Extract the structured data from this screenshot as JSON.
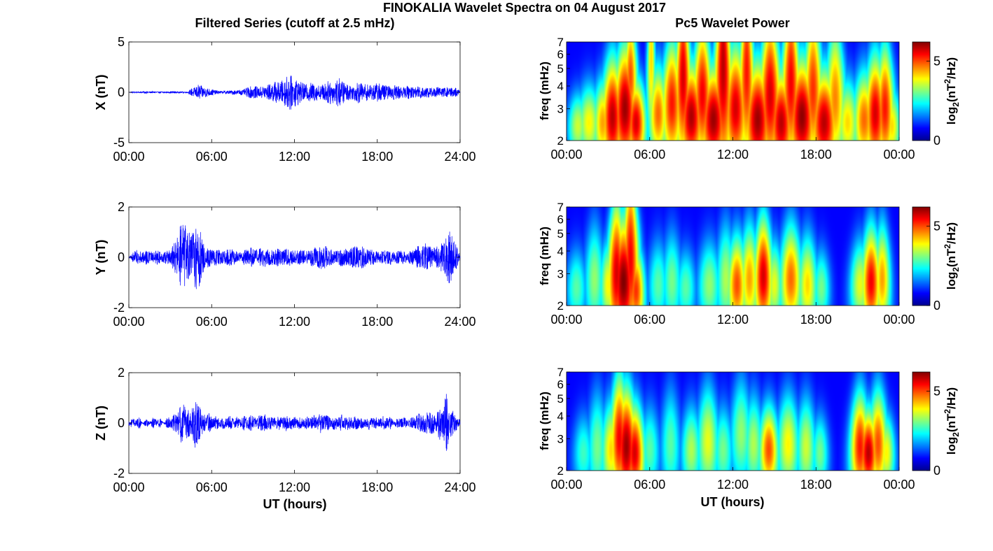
{
  "figure": {
    "suptitle": "FINOKALIA Wavelet Spectra on 04 August 2017",
    "left_title": "Filtered Series (cutoff at 2.5 mHz)",
    "right_title": "Pc5 Wavelet Power",
    "xlabel": "UT (hours)",
    "colors": {
      "series_line": "#0000ff",
      "axes": "#000000"
    },
    "colormap": "jet"
  },
  "chart_data": [
    {
      "type": "line",
      "component": "X",
      "ylabel": "X (nT)",
      "xlim": [
        0,
        24
      ],
      "ylim": [
        -5,
        5
      ],
      "xticks": [
        "00:00",
        "06:00",
        "12:00",
        "18:00",
        "24:00"
      ],
      "yticks": [
        "-5",
        "0",
        "5"
      ],
      "series": [
        {
          "values": [
            0,
            0.08,
            -0.06,
            0.05,
            -0.1,
            0.12,
            -0.08,
            0.1,
            0.05,
            -0.09,
            0.08,
            -0.06,
            0.1,
            -0.12,
            0.09,
            -0.07,
            0.06,
            -0.1,
            0.4,
            -0.5,
            0.8,
            -0.6,
            0.5,
            -0.4,
            0.3,
            -0.2,
            0.15,
            -0.1,
            0.2,
            -0.15,
            0.25,
            -0.2,
            0.3,
            -0.25,
            0.5,
            -0.6,
            0.7,
            -0.5,
            0.6,
            -0.7,
            0.8,
            -0.9,
            1.1,
            -1.0,
            1.2,
            -1.4,
            2.1,
            -1.3,
            1.5,
            -1.1,
            0.9,
            -0.8,
            1.0,
            -0.9,
            0.8,
            -0.7,
            0.9,
            -1.1,
            1.3,
            -0.9,
            1.6,
            -1.2,
            1.0,
            -0.8,
            0.7,
            -0.9,
            1.1,
            -0.8,
            0.9,
            -0.7,
            0.8,
            -0.9,
            1.0,
            -0.8,
            0.7,
            -0.6,
            0.8,
            -0.7,
            0.6,
            -0.5,
            0.7,
            -0.6,
            0.5,
            -0.6,
            0.7,
            -0.5,
            0.6,
            -0.4,
            0.5,
            -0.6,
            0.4,
            -0.5,
            0.6,
            -0.4,
            0.5,
            0.1
          ]
        }
      ]
    },
    {
      "type": "line",
      "component": "Y",
      "ylabel": "Y (nT)",
      "xlim": [
        0,
        24
      ],
      "ylim": [
        -2,
        2
      ],
      "xticks": [
        "00:00",
        "06:00",
        "12:00",
        "18:00",
        "24:00"
      ],
      "yticks": [
        "-2",
        "0",
        "2"
      ],
      "series": [
        {
          "values": [
            0,
            0.2,
            -0.3,
            0.25,
            -0.2,
            0.3,
            -0.25,
            0.2,
            -0.3,
            0.25,
            -0.2,
            0.3,
            -0.4,
            0.6,
            -0.8,
            1.6,
            -1.3,
            1.1,
            -0.9,
            1.4,
            -1.4,
            0.7,
            -0.5,
            0.4,
            -0.3,
            0.35,
            -0.3,
            0.25,
            -0.3,
            0.35,
            -0.3,
            0.25,
            -0.2,
            0.3,
            -0.3,
            0.4,
            -0.35,
            0.3,
            -0.4,
            0.45,
            -0.35,
            0.3,
            -0.4,
            0.35,
            -0.3,
            0.4,
            -0.35,
            0.3,
            -0.25,
            0.3,
            -0.3,
            0.25,
            -0.3,
            0.4,
            -0.4,
            0.6,
            -0.5,
            0.4,
            -0.35,
            0.3,
            -0.3,
            0.4,
            -0.35,
            0.3,
            -0.4,
            0.5,
            -0.4,
            0.45,
            -0.35,
            0.3,
            -0.3,
            0.25,
            -0.2,
            0.3,
            -0.25,
            0.3,
            -0.2,
            0.25,
            -0.3,
            0.25,
            -0.2,
            0.3,
            -0.3,
            0.5,
            -0.4,
            0.6,
            -0.5,
            0.4,
            -0.4,
            0.5,
            -0.6,
            0.8,
            -1.2,
            0.7,
            -0.5,
            0.1
          ]
        }
      ]
    },
    {
      "type": "line",
      "component": "Z",
      "ylabel": "Z (nT)",
      "xlim": [
        0,
        24
      ],
      "ylim": [
        -2,
        2
      ],
      "xticks": [
        "00:00",
        "06:00",
        "12:00",
        "18:00",
        "24:00"
      ],
      "yticks": [
        "-2",
        "0",
        "2"
      ],
      "series": [
        {
          "values": [
            0.1,
            0.2,
            -0.1,
            0.25,
            0,
            0.2,
            -0.05,
            0.3,
            -0.1,
            0.2,
            0,
            0.25,
            -0.2,
            0.35,
            -0.4,
            0.8,
            -0.7,
            0.6,
            -0.5,
            1.0,
            -0.8,
            0.5,
            -0.3,
            0.4,
            -0.2,
            0.3,
            -0.15,
            0.25,
            -0.2,
            0.3,
            -0.2,
            0.25,
            -0.15,
            0.3,
            -0.2,
            0.35,
            -0.25,
            0.3,
            -0.3,
            0.35,
            -0.25,
            0.3,
            -0.2,
            0.3,
            -0.25,
            0.35,
            -0.2,
            0.3,
            -0.2,
            0.25,
            -0.15,
            0.3,
            -0.2,
            0.35,
            -0.25,
            0.4,
            -0.3,
            0.35,
            -0.2,
            0.3,
            -0.2,
            0.35,
            -0.25,
            0.3,
            -0.2,
            0.3,
            -0.2,
            0.25,
            -0.15,
            0.3,
            -0.2,
            0.25,
            -0.15,
            0.3,
            -0.2,
            0.25,
            -0.1,
            0.2,
            -0.15,
            0.25,
            -0.1,
            0.3,
            -0.2,
            0.4,
            -0.3,
            0.6,
            -0.4,
            0.5,
            -0.3,
            0.7,
            -0.5,
            1.2,
            -0.6,
            0.5,
            -0.3,
            0.1
          ]
        }
      ]
    },
    {
      "type": "heatmap",
      "component": "X",
      "ylabel": "freq (mHz)",
      "xlim": [
        0,
        24
      ],
      "ylim": [
        2,
        7
      ],
      "y_scale": "log",
      "xticks": [
        "00:00",
        "06:00",
        "12:00",
        "18:00",
        "00:00"
      ],
      "yticks": [
        "2",
        "3",
        "4",
        "5",
        "6",
        "7"
      ],
      "colorbar": {
        "label": "log2(nT^2/Hz)",
        "ticks": [
          "0",
          "5"
        ],
        "range": [
          0,
          6.2
        ]
      },
      "bursts": [
        {
          "t": 0.8,
          "f": 2.4,
          "p": 3.2,
          "w": 0.35,
          "h": 0.3
        },
        {
          "t": 1.6,
          "f": 2.5,
          "p": 3.6,
          "w": 0.4,
          "h": 0.35
        },
        {
          "t": 2.6,
          "f": 2.5,
          "p": 4.2,
          "w": 0.35,
          "h": 0.4
        },
        {
          "t": 3.3,
          "f": 2.7,
          "p": 5.8,
          "w": 0.4,
          "h": 0.55
        },
        {
          "t": 4.2,
          "f": 3.0,
          "p": 6.0,
          "w": 0.45,
          "h": 0.6
        },
        {
          "t": 4.6,
          "f": 4.5,
          "p": 4.8,
          "w": 0.3,
          "h": 0.6
        },
        {
          "t": 5.0,
          "f": 2.5,
          "p": 5.6,
          "w": 0.35,
          "h": 0.4
        },
        {
          "t": 6.1,
          "f": 5.8,
          "p": 3.8,
          "w": 0.2,
          "h": 0.9
        },
        {
          "t": 6.6,
          "f": 2.8,
          "p": 4.6,
          "w": 0.35,
          "h": 0.45
        },
        {
          "t": 7.6,
          "f": 3.2,
          "p": 5.2,
          "w": 0.4,
          "h": 0.6
        },
        {
          "t": 8.4,
          "f": 4.5,
          "p": 5.6,
          "w": 0.35,
          "h": 0.9
        },
        {
          "t": 9.0,
          "f": 2.7,
          "p": 5.9,
          "w": 0.45,
          "h": 0.5
        },
        {
          "t": 9.8,
          "f": 3.6,
          "p": 5.4,
          "w": 0.4,
          "h": 0.7
        },
        {
          "t": 10.6,
          "f": 2.6,
          "p": 6.0,
          "w": 0.5,
          "h": 0.5
        },
        {
          "t": 11.3,
          "f": 5.2,
          "p": 5.8,
          "w": 0.4,
          "h": 1.2
        },
        {
          "t": 12.2,
          "f": 3.0,
          "p": 5.6,
          "w": 0.45,
          "h": 0.6
        },
        {
          "t": 13.0,
          "f": 4.8,
          "p": 5.2,
          "w": 0.35,
          "h": 1.0
        },
        {
          "t": 13.8,
          "f": 2.6,
          "p": 6.0,
          "w": 0.5,
          "h": 0.55
        },
        {
          "t": 14.7,
          "f": 3.6,
          "p": 5.6,
          "w": 0.45,
          "h": 0.8
        },
        {
          "t": 15.5,
          "f": 2.5,
          "p": 5.8,
          "w": 0.45,
          "h": 0.5
        },
        {
          "t": 16.2,
          "f": 4.2,
          "p": 5.4,
          "w": 0.4,
          "h": 0.9
        },
        {
          "t": 17.0,
          "f": 2.7,
          "p": 6.1,
          "w": 0.5,
          "h": 0.55
        },
        {
          "t": 17.8,
          "f": 3.8,
          "p": 5.0,
          "w": 0.4,
          "h": 0.8
        },
        {
          "t": 18.6,
          "f": 2.5,
          "p": 5.8,
          "w": 0.5,
          "h": 0.5
        },
        {
          "t": 19.4,
          "f": 3.4,
          "p": 4.4,
          "w": 0.4,
          "h": 0.7
        },
        {
          "t": 20.3,
          "f": 2.5,
          "p": 3.8,
          "w": 0.4,
          "h": 0.4
        },
        {
          "t": 21.5,
          "f": 2.6,
          "p": 4.6,
          "w": 0.4,
          "h": 0.45
        },
        {
          "t": 22.3,
          "f": 2.8,
          "p": 5.6,
          "w": 0.4,
          "h": 0.55
        },
        {
          "t": 23.0,
          "f": 3.0,
          "p": 5.2,
          "w": 0.35,
          "h": 0.6
        },
        {
          "t": 23.5,
          "f": 2.4,
          "p": 3.8,
          "w": 0.3,
          "h": 0.35
        }
      ]
    },
    {
      "type": "heatmap",
      "component": "Y",
      "ylabel": "freq (mHz)",
      "xlim": [
        0,
        24
      ],
      "ylim": [
        2,
        7
      ],
      "y_scale": "log",
      "xticks": [
        "00:00",
        "06:00",
        "12:00",
        "18:00",
        "00:00"
      ],
      "yticks": [
        "2",
        "3",
        "4",
        "5",
        "6",
        "7"
      ],
      "colorbar": {
        "label": "log2(nT^2/Hz)",
        "ticks": [
          "0",
          "5"
        ],
        "range": [
          0,
          6.2
        ]
      },
      "bursts": [
        {
          "t": 0.7,
          "f": 2.5,
          "p": 2.4,
          "w": 0.35,
          "h": 0.35
        },
        {
          "t": 2.0,
          "f": 2.8,
          "p": 2.8,
          "w": 0.35,
          "h": 0.5
        },
        {
          "t": 3.0,
          "f": 2.6,
          "p": 3.6,
          "w": 0.3,
          "h": 0.4
        },
        {
          "t": 3.6,
          "f": 3.0,
          "p": 5.6,
          "w": 0.35,
          "h": 0.7
        },
        {
          "t": 4.1,
          "f": 2.7,
          "p": 6.2,
          "w": 0.45,
          "h": 0.6
        },
        {
          "t": 4.6,
          "f": 3.6,
          "p": 5.4,
          "w": 0.35,
          "h": 0.9
        },
        {
          "t": 5.0,
          "f": 2.4,
          "p": 5.0,
          "w": 0.3,
          "h": 0.4
        },
        {
          "t": 6.6,
          "f": 2.6,
          "p": 2.4,
          "w": 0.35,
          "h": 0.4
        },
        {
          "t": 7.6,
          "f": 2.7,
          "p": 2.6,
          "w": 0.35,
          "h": 0.45
        },
        {
          "t": 8.6,
          "f": 2.5,
          "p": 2.4,
          "w": 0.35,
          "h": 0.35
        },
        {
          "t": 10.3,
          "f": 2.6,
          "p": 2.8,
          "w": 0.4,
          "h": 0.4
        },
        {
          "t": 11.5,
          "f": 2.8,
          "p": 3.0,
          "w": 0.35,
          "h": 0.5
        },
        {
          "t": 12.3,
          "f": 2.6,
          "p": 4.8,
          "w": 0.35,
          "h": 0.45
        },
        {
          "t": 13.2,
          "f": 2.8,
          "p": 4.2,
          "w": 0.35,
          "h": 0.5
        },
        {
          "t": 14.2,
          "f": 2.9,
          "p": 5.6,
          "w": 0.35,
          "h": 0.55
        },
        {
          "t": 15.0,
          "f": 2.6,
          "p": 3.4,
          "w": 0.3,
          "h": 0.4
        },
        {
          "t": 16.2,
          "f": 2.8,
          "p": 4.6,
          "w": 0.4,
          "h": 0.5
        },
        {
          "t": 17.4,
          "f": 2.6,
          "p": 3.8,
          "w": 0.35,
          "h": 0.45
        },
        {
          "t": 18.4,
          "f": 2.5,
          "p": 2.6,
          "w": 0.3,
          "h": 0.35
        },
        {
          "t": 21.2,
          "f": 2.6,
          "p": 3.4,
          "w": 0.35,
          "h": 0.4
        },
        {
          "t": 22.0,
          "f": 2.7,
          "p": 5.4,
          "w": 0.35,
          "h": 0.5
        },
        {
          "t": 22.8,
          "f": 2.8,
          "p": 4.2,
          "w": 0.3,
          "h": 0.5
        }
      ]
    },
    {
      "type": "heatmap",
      "component": "Z",
      "ylabel": "freq (mHz)",
      "xlim": [
        0,
        24
      ],
      "ylim": [
        2,
        7
      ],
      "y_scale": "log",
      "xticks": [
        "00:00",
        "06:00",
        "12:00",
        "18:00",
        "00:00"
      ],
      "yticks": [
        "2",
        "3",
        "4",
        "5",
        "6",
        "7"
      ],
      "colorbar": {
        "label": "log2(nT^2/Hz)",
        "ticks": [
          "0",
          "5"
        ],
        "range": [
          0,
          6.2
        ]
      },
      "bursts": [
        {
          "t": 1.2,
          "f": 2.5,
          "p": 2.2,
          "w": 0.35,
          "h": 0.35
        },
        {
          "t": 2.2,
          "f": 2.7,
          "p": 2.6,
          "w": 0.35,
          "h": 0.5
        },
        {
          "t": 3.2,
          "f": 2.6,
          "p": 3.8,
          "w": 0.35,
          "h": 0.45
        },
        {
          "t": 3.8,
          "f": 3.0,
          "p": 5.4,
          "w": 0.35,
          "h": 0.6
        },
        {
          "t": 4.3,
          "f": 2.7,
          "p": 6.0,
          "w": 0.4,
          "h": 0.55
        },
        {
          "t": 4.9,
          "f": 2.5,
          "p": 5.6,
          "w": 0.35,
          "h": 0.45
        },
        {
          "t": 6.0,
          "f": 2.6,
          "p": 2.4,
          "w": 0.35,
          "h": 0.4
        },
        {
          "t": 7.5,
          "f": 2.8,
          "p": 2.4,
          "w": 0.35,
          "h": 0.5
        },
        {
          "t": 9.0,
          "f": 2.6,
          "p": 3.0,
          "w": 0.35,
          "h": 0.4
        },
        {
          "t": 10.2,
          "f": 2.9,
          "p": 3.4,
          "w": 0.4,
          "h": 0.5
        },
        {
          "t": 11.3,
          "f": 2.6,
          "p": 2.6,
          "w": 0.35,
          "h": 0.4
        },
        {
          "t": 12.6,
          "f": 3.2,
          "p": 2.8,
          "w": 0.4,
          "h": 0.5
        },
        {
          "t": 13.5,
          "f": 2.8,
          "p": 3.0,
          "w": 0.35,
          "h": 0.45
        },
        {
          "t": 14.6,
          "f": 2.6,
          "p": 4.8,
          "w": 0.35,
          "h": 0.4
        },
        {
          "t": 16.0,
          "f": 2.8,
          "p": 3.6,
          "w": 0.4,
          "h": 0.45
        },
        {
          "t": 17.3,
          "f": 2.7,
          "p": 3.2,
          "w": 0.35,
          "h": 0.45
        },
        {
          "t": 18.3,
          "f": 2.5,
          "p": 2.6,
          "w": 0.3,
          "h": 0.35
        },
        {
          "t": 21.2,
          "f": 2.7,
          "p": 5.2,
          "w": 0.35,
          "h": 0.5
        },
        {
          "t": 21.8,
          "f": 2.5,
          "p": 5.8,
          "w": 0.35,
          "h": 0.4
        },
        {
          "t": 22.5,
          "f": 2.8,
          "p": 4.8,
          "w": 0.35,
          "h": 0.5
        },
        {
          "t": 23.1,
          "f": 2.5,
          "p": 3.6,
          "w": 0.3,
          "h": 0.35
        }
      ]
    }
  ]
}
